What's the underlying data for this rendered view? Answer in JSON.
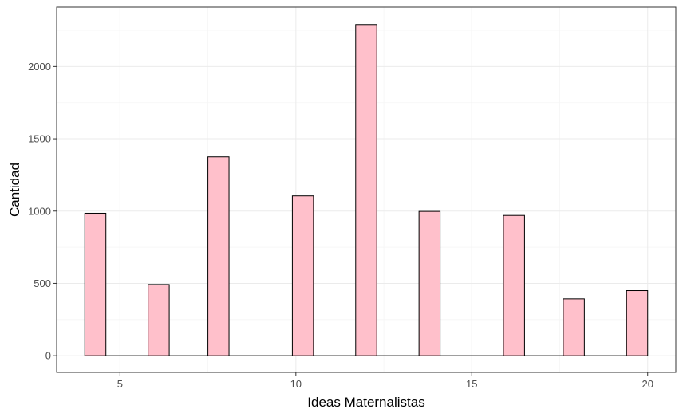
{
  "chart_data": {
    "type": "bar",
    "xlabel": "Ideas Maternalistas",
    "ylabel": "Cantidad",
    "xlim": [
      3.2,
      20.8
    ],
    "ylim": [
      -115,
      2410
    ],
    "x_ticks": [
      5,
      10,
      15,
      20
    ],
    "y_ticks": [
      0,
      500,
      1000,
      1500,
      2000
    ],
    "bar_width": 0.6,
    "grid": true,
    "legend": "none",
    "bars": [
      {
        "x": 4.3,
        "y": 985
      },
      {
        "x": 6.1,
        "y": 492
      },
      {
        "x": 7.8,
        "y": 1375
      },
      {
        "x": 10.2,
        "y": 1105
      },
      {
        "x": 12.0,
        "y": 2290
      },
      {
        "x": 13.8,
        "y": 998
      },
      {
        "x": 16.2,
        "y": 970
      },
      {
        "x": 17.9,
        "y": 393
      },
      {
        "x": 19.7,
        "y": 450
      }
    ]
  },
  "colors": {
    "bar_fill": "#FFC0CB",
    "bar_stroke": "#000000",
    "grid_major": "#EBEBEB",
    "grid_minor": "#F5F5F5",
    "panel_border": "#333333"
  }
}
